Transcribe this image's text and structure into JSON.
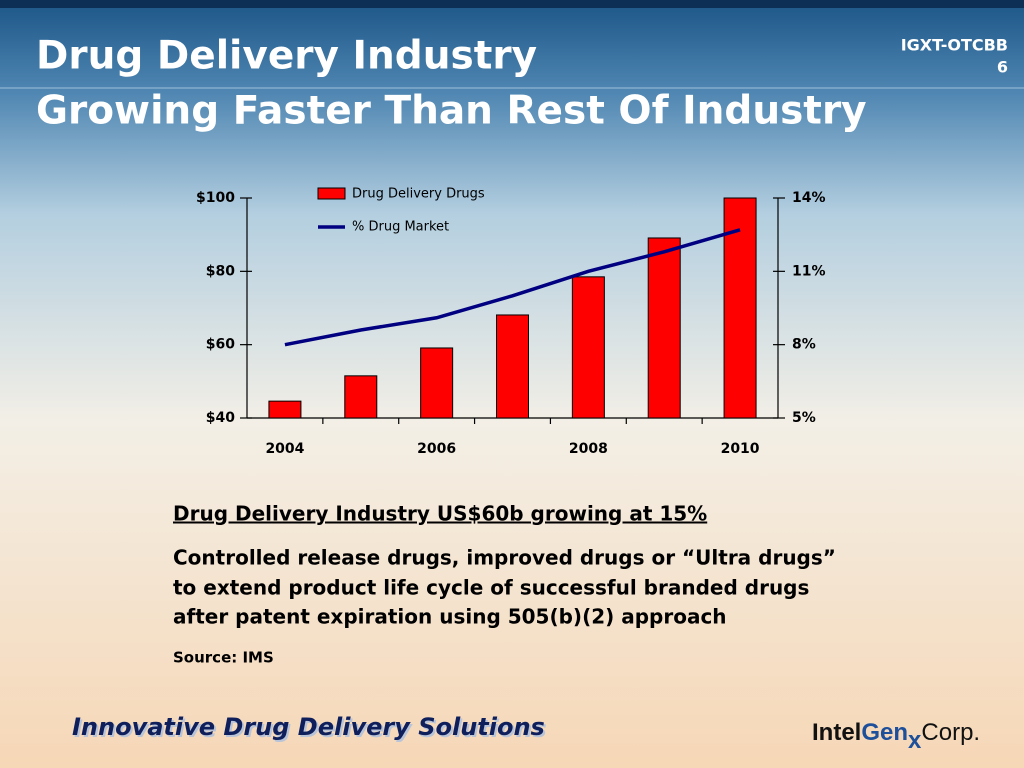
{
  "header": {
    "title_lines": [
      "Drug Delivery Industry",
      "Growing Faster Than Rest Of Industry"
    ],
    "ticker": "IGXT-OTCBB",
    "page": "6"
  },
  "chart_data": {
    "type": "bar",
    "categories": [
      "2004",
      null,
      "2006",
      null,
      "2008",
      null,
      "2010"
    ],
    "series": [
      {
        "name": "Drug Delivery Drugs",
        "type": "bar",
        "color": "#ff0000",
        "values": [
          44.6,
          51.5,
          59.1,
          68.1,
          78.5,
          89.1,
          100
        ]
      },
      {
        "name": "% Drug Market",
        "type": "line",
        "axis": "y2",
        "color": "#000080",
        "values": [
          8.0,
          8.6,
          9.1,
          10.0,
          11.0,
          11.8,
          12.7
        ]
      }
    ],
    "ylim": [
      40,
      100
    ],
    "yticks": [
      {
        "value": 40,
        "label": "$40"
      },
      {
        "value": 60,
        "label": "$60"
      },
      {
        "value": 80,
        "label": "$80"
      },
      {
        "value": 100,
        "label": "$100"
      }
    ],
    "y2lim": [
      5,
      14
    ],
    "y2ticks": [
      {
        "value": 5,
        "label": "5%"
      },
      {
        "value": 8,
        "label": "8%"
      },
      {
        "value": 11,
        "label": "11%"
      },
      {
        "value": 14,
        "label": "14%"
      }
    ],
    "legend": "top-left"
  },
  "body": {
    "heading": "Drug Delivery Industry US$60b growing at 15%",
    "lines": [
      "Controlled release drugs, improved drugs or “Ultra drugs”",
      "to extend product life cycle of successful branded drugs",
      "after patent expiration using 505(b)(2) approach"
    ],
    "source": "Source: IMS"
  },
  "footer": {
    "tagline": "Innovative Drug Delivery Solutions",
    "logo": [
      "Intel",
      "Gen",
      "x",
      "Corp."
    ]
  }
}
